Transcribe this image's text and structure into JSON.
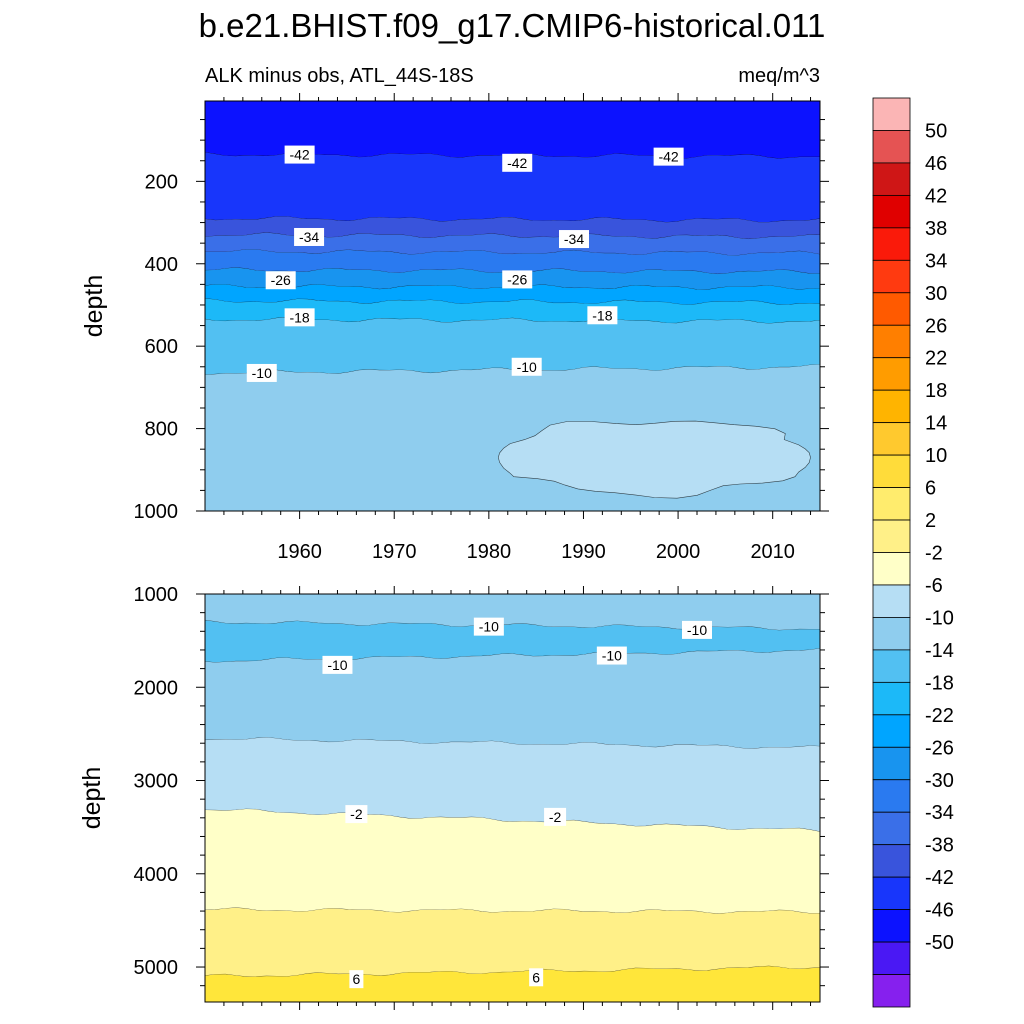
{
  "title": "b.e21.BHIST.f09_g17.CMIP6-historical.011",
  "subtitle_left": "ALK minus obs, ATL_44S-18S",
  "subtitle_right": "meq/m^3",
  "colorbar": {
    "labels": [
      "50",
      "46",
      "42",
      "38",
      "34",
      "30",
      "26",
      "22",
      "18",
      "14",
      "10",
      "6",
      "2",
      "-2",
      "-6",
      "-10",
      "-14",
      "-18",
      "-22",
      "-26",
      "-30",
      "-34",
      "-38",
      "-42",
      "-46",
      "-50"
    ],
    "colors": [
      "#fbb5b5",
      "#e55353",
      "#cf1616",
      "#e00000",
      "#fa1a0a",
      "#ff3a10",
      "#ff5a00",
      "#ff7f00",
      "#ff9c00",
      "#ffb400",
      "#ffc92e",
      "#ffdc3a",
      "#ffec6d",
      "#fff088",
      "#ffffc8",
      "#b6def4",
      "#8fcdee",
      "#52c0f2",
      "#1cb9f8",
      "#00a5ff",
      "#1894ef",
      "#2a7af0",
      "#3a6fe8",
      "#3954dc",
      "#1836fb",
      "#0c12ff",
      "#4a18f4",
      "#8620ee"
    ]
  },
  "chart_data": [
    {
      "type": "heatmap",
      "panel": "upper",
      "xlabel": "",
      "ylabel": "depth",
      "x_ticks": [
        "1960",
        "1970",
        "1980",
        "1990",
        "2000",
        "2010"
      ],
      "y_ticks": [
        "200",
        "400",
        "600",
        "800",
        "1000"
      ],
      "xlim": [
        1950,
        2015
      ],
      "ylim": [
        1000,
        5
      ],
      "y_inverted": true,
      "contour_interval": 4,
      "bands": [
        {
          "fill": "#0c12ff",
          "level": "-46 to -42",
          "top": 5,
          "bottom_west": 135,
          "bottom_east": 140
        },
        {
          "fill": "#1836fb",
          "level": "-42 to -38",
          "top": 135,
          "bottom_west": 290,
          "bottom_east": 295
        },
        {
          "fill": "#3954dc",
          "level": "-38 to -34",
          "top": 290,
          "bottom_west": 330,
          "bottom_east": 335
        },
        {
          "fill": "#3a6fe8",
          "level": "-34 to -30",
          "top": 330,
          "bottom_west": 370,
          "bottom_east": 375
        },
        {
          "fill": "#2a7af0",
          "level": "-30 to -26",
          "top": 370,
          "bottom_west": 415,
          "bottom_east": 420
        },
        {
          "fill": "#1894ef",
          "level": "-26 to -22",
          "top": 415,
          "bottom_west": 455,
          "bottom_east": 458
        },
        {
          "fill": "#00a5ff",
          "level": "-22 to -18",
          "top": 455,
          "bottom_west": 490,
          "bottom_east": 495
        },
        {
          "fill": "#1cb9f8",
          "level": "-18 to -14",
          "top": 490,
          "bottom_west": 535,
          "bottom_east": 540
        },
        {
          "fill": "#52c0f2",
          "level": "-14 to -10",
          "top": 535,
          "bottom_west": 665,
          "bottom_east": 650
        },
        {
          "fill": "#8fcdee",
          "level": "-10 to -6",
          "top": 665,
          "bottom_west": 1000,
          "bottom_east": 1000
        }
      ],
      "pocket": {
        "fill": "#b6def4",
        "level": "-6 to -2",
        "x_range": [
          1981,
          2014
        ],
        "depth_range": [
          780,
          960
        ]
      },
      "contour_labels": [
        {
          "text": "-42",
          "x": 1960,
          "y": 135
        },
        {
          "text": "-42",
          "x": 1983,
          "y": 155
        },
        {
          "text": "-42",
          "x": 1999,
          "y": 140
        },
        {
          "text": "-34",
          "x": 1961,
          "y": 335
        },
        {
          "text": "-34",
          "x": 1989,
          "y": 340
        },
        {
          "text": "-26",
          "x": 1958,
          "y": 440
        },
        {
          "text": "-26",
          "x": 1983,
          "y": 438
        },
        {
          "text": "-18",
          "x": 1960,
          "y": 530
        },
        {
          "text": "-18",
          "x": 1992,
          "y": 525
        },
        {
          "text": "-10",
          "x": 1956,
          "y": 665
        },
        {
          "text": "-10",
          "x": 1984,
          "y": 650
        }
      ]
    },
    {
      "type": "heatmap",
      "panel": "lower",
      "xlabel": "",
      "ylabel": "depth",
      "x_ticks": [],
      "y_ticks": [
        "1000",
        "2000",
        "3000",
        "4000",
        "5000"
      ],
      "xlim": [
        1950,
        2015
      ],
      "ylim": [
        5375,
        1000
      ],
      "y_inverted": true,
      "contour_interval": 4,
      "bands": [
        {
          "fill": "#8fcdee",
          "level": "-10 to -6",
          "top": 1000,
          "bottom_west": 1300,
          "bottom_east": 1375
        },
        {
          "fill": "#52c0f2",
          "level": "-14 to -10",
          "top": 1300,
          "bottom_west": 1720,
          "bottom_east": 1600
        },
        {
          "fill": "#8fcdee",
          "level": "-10 to -6",
          "top": 1720,
          "bottom_west": 2550,
          "bottom_east": 2650
        },
        {
          "fill": "#b6def4",
          "level": "-6 to -2",
          "top": 2550,
          "bottom_west": 3310,
          "bottom_east": 3540
        },
        {
          "fill": "#ffffc8",
          "level": "-2 to 2",
          "top": 3310,
          "bottom_west": 4385,
          "bottom_east": 4410
        },
        {
          "fill": "#fff088",
          "level": "2 to 6",
          "top": 4385,
          "bottom_west": 5100,
          "bottom_east": 5000
        },
        {
          "fill": "#ffe63a",
          "level": "6 to 10",
          "top": 5100,
          "bottom_west": 5375,
          "bottom_east": 5375
        }
      ],
      "contour_labels": [
        {
          "text": "-10",
          "x": 1980,
          "y": 1350
        },
        {
          "text": "-10",
          "x": 2002,
          "y": 1385
        },
        {
          "text": "-10",
          "x": 1964,
          "y": 1760
        },
        {
          "text": "-10",
          "x": 1993,
          "y": 1660
        },
        {
          "text": "-2",
          "x": 1966,
          "y": 3360
        },
        {
          "text": "-2",
          "x": 1987,
          "y": 3390
        },
        {
          "text": "6",
          "x": 1966,
          "y": 5130
        },
        {
          "text": "6",
          "x": 1985,
          "y": 5110
        }
      ]
    }
  ]
}
